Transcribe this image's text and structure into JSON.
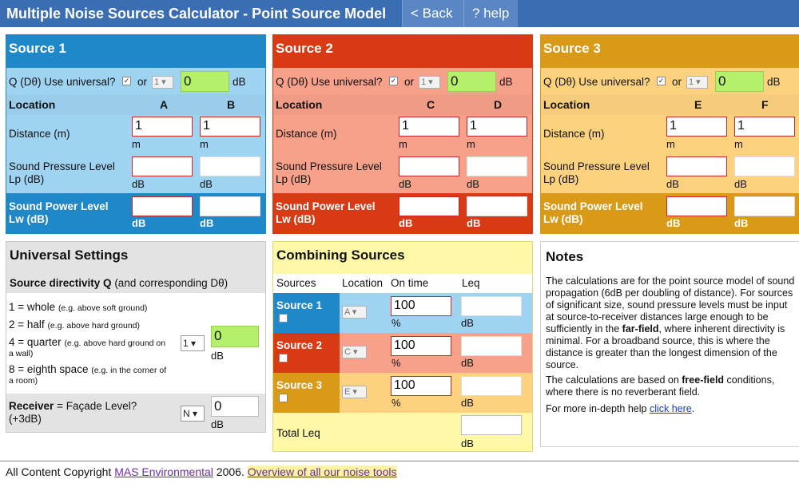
{
  "app": {
    "title": "Multiple Noise Sources Calculator - Point Source Model",
    "back_label": "< Back",
    "help_label": "? help"
  },
  "colors": {
    "source1_dark": "#1e88c8",
    "source1_light": "#9fd3f2",
    "source2_dark": "#d83a14",
    "source2_light": "#f7a08a",
    "source3_dark": "#d99a18",
    "source3_light": "#fcd27f",
    "highlight_green": "#b5f06a"
  },
  "sources": [
    {
      "title": "Source 1",
      "q_label": "Q (Dθ) Use universal?",
      "or_label": "or",
      "q_select": "1",
      "d_value": "0",
      "d_unit": "dB",
      "location_label": "Location",
      "loc_a": "A",
      "loc_b": "B",
      "distance_label": "Distance (m)",
      "dist_a": "1",
      "dist_b": "1",
      "dist_unit": "m",
      "spl_label_1": "Sound Pressure Level",
      "spl_label_2": "Lp (dB)",
      "spl_unit": "dB",
      "swl_label_1": "Sound Power Level",
      "swl_label_2": "Lw (dB)",
      "swl_unit": "dB"
    },
    {
      "title": "Source 2",
      "q_label": "Q (Dθ) Use universal?",
      "or_label": "or",
      "q_select": "1",
      "d_value": "0",
      "d_unit": "dB",
      "location_label": "Location",
      "loc_a": "C",
      "loc_b": "D",
      "distance_label": "Distance (m)",
      "dist_a": "1",
      "dist_b": "1",
      "dist_unit": "m",
      "spl_label_1": "Sound Pressure Level",
      "spl_label_2": "Lp (dB)",
      "spl_unit": "dB",
      "swl_label_1": "Sound Power Level",
      "swl_label_2": "Lw (dB)",
      "swl_unit": "dB"
    },
    {
      "title": "Source 3",
      "q_label": "Q (Dθ) Use universal?",
      "or_label": "or",
      "q_select": "1",
      "d_value": "0",
      "d_unit": "dB",
      "location_label": "Location",
      "loc_a": "E",
      "loc_b": "F",
      "distance_label": "Distance (m)",
      "dist_a": "1",
      "dist_b": "1",
      "dist_unit": "m",
      "spl_label_1": "Sound Pressure Level",
      "spl_label_2": "Lp (dB)",
      "spl_unit": "dB",
      "swl_label_1": "Sound Power Level",
      "swl_label_2": "Lw (dB)",
      "swl_unit": "dB"
    }
  ],
  "universal": {
    "title": "Universal Settings",
    "directivity_heading": "Source directivity Q",
    "directivity_suffix": "(and corresponding Dθ)",
    "options": [
      {
        "main": "1 = whole",
        "note": "(e.g. above soft ground)"
      },
      {
        "main": "2 = half",
        "note": "(e.g. above hard ground)"
      },
      {
        "main": "4 = quarter",
        "note": "(e.g. above hard ground on"
      },
      {
        "main": "8 = eighth space",
        "note": "(e.g. in the corner of"
      }
    ],
    "option3_note_cont": "a wall)",
    "option4_note_cont": "a room)",
    "q_select": "1",
    "d_value": "0",
    "d_unit": "dB",
    "receiver_label": "Receiver",
    "receiver_suffix": "= Façade Level?",
    "receiver_note": "(+3dB)",
    "receiver_select": "N",
    "receiver_value": "0",
    "receiver_unit": "dB"
  },
  "combining": {
    "title": "Combining Sources",
    "col_sources": "Sources",
    "col_location": "Location",
    "col_ontime": "On time",
    "col_leq": "Leq",
    "rows": [
      {
        "name": "Source 1",
        "location": "A",
        "ontime": "100",
        "ontime_unit": "%",
        "leq_unit": "dB"
      },
      {
        "name": "Source 2",
        "location": "C",
        "ontime": "100",
        "ontime_unit": "%",
        "leq_unit": "dB"
      },
      {
        "name": "Source 3",
        "location": "E",
        "ontime": "100",
        "ontime_unit": "%",
        "leq_unit": "dB"
      }
    ],
    "total_label": "Total Leq",
    "total_unit": "dB"
  },
  "notes": {
    "title": "Notes",
    "p1_a": "The calculations are for the point source model of sound propagation (6dB per doubling of distance). For sources of significant size, sound pressure levels must be input at source-to-receiver distances large enough to be sufficiently in the",
    "p1_bold": "far-field",
    "p1_b": ", where inherent directivity is minimal. For a broadband source, this is where the distance is greater than the longest dimension of the source.",
    "p2_a": "The calculations are based on",
    "p2_bold": "free-field",
    "p2_b": "conditions, where there is no reverberant field.",
    "p3_a": "For more in-depth help",
    "p3_link": "click here",
    "p3_b": "."
  },
  "footer": {
    "prefix": "All Content Copyright",
    "company_link": "MAS Environmental",
    "year": "2006.",
    "overview_link": "Overview of all our noise tools"
  }
}
